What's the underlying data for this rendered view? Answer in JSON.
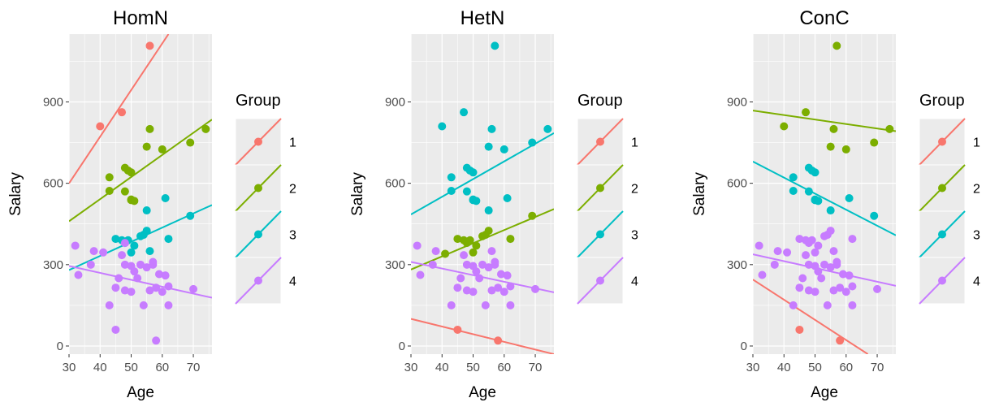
{
  "chart_data": [
    {
      "type": "scatter",
      "title": "HomN",
      "xlabel": "Age",
      "ylabel": "Salary",
      "xlim": [
        30,
        76
      ],
      "ylim": [
        -30,
        1150
      ],
      "x_ticks": [
        30,
        40,
        50,
        60,
        70
      ],
      "y_ticks": [
        0,
        300,
        600,
        900
      ],
      "legend": {
        "title": "Group",
        "entries": [
          "1",
          "2",
          "3",
          "4"
        ],
        "placement": "right"
      },
      "grid": true,
      "series": [
        {
          "name": "1",
          "color": "#F8766D",
          "points": [
            [
              40,
              810
            ],
            [
              47,
              862
            ],
            [
              56,
              1107
            ]
          ],
          "line": [
            [
              30,
              600
            ],
            [
              62,
              1150
            ]
          ]
        },
        {
          "name": "2",
          "color": "#7CAE00",
          "points": [
            [
              43,
              622
            ],
            [
              43,
              572
            ],
            [
              48,
              657
            ],
            [
              48,
              570
            ],
            [
              49,
              647
            ],
            [
              50,
              540
            ],
            [
              50,
              640
            ],
            [
              50,
              538
            ],
            [
              51,
              535
            ],
            [
              55,
              735
            ],
            [
              56,
              800
            ],
            [
              60,
              725
            ],
            [
              69,
              750
            ],
            [
              74,
              800
            ]
          ],
          "line": [
            [
              30,
              460
            ],
            [
              76,
              835
            ]
          ]
        },
        {
          "name": "3",
          "color": "#00BFC4",
          "points": [
            [
              45,
              395
            ],
            [
              47,
              390
            ],
            [
              48,
              380
            ],
            [
              49,
              390
            ],
            [
              50,
              345
            ],
            [
              51,
              370
            ],
            [
              53,
              405
            ],
            [
              54,
              410
            ],
            [
              55,
              425
            ],
            [
              55,
              500
            ],
            [
              56,
              350
            ],
            [
              61,
              545
            ],
            [
              62,
              395
            ],
            [
              69,
              480
            ]
          ],
          "line": [
            [
              30,
              280
            ],
            [
              76,
              520
            ]
          ]
        },
        {
          "name": "4",
          "color": "#C77CFF",
          "points": [
            [
              32,
              370
            ],
            [
              33,
              262
            ],
            [
              37,
              300
            ],
            [
              38,
              350
            ],
            [
              41,
              345
            ],
            [
              43,
              150
            ],
            [
              45,
              215
            ],
            [
              45,
              60
            ],
            [
              46,
              250
            ],
            [
              47,
              335
            ],
            [
              48,
              300
            ],
            [
              48,
              205
            ],
            [
              48,
              380
            ],
            [
              50,
              295
            ],
            [
              50,
              200
            ],
            [
              51,
              275
            ],
            [
              53,
              300
            ],
            [
              54,
              150
            ],
            [
              55,
              290
            ],
            [
              56,
              205
            ],
            [
              57,
              300
            ],
            [
              57,
              310
            ],
            [
              58,
              20
            ],
            [
              58,
              215
            ],
            [
              59,
              265
            ],
            [
              60,
              200
            ],
            [
              61,
              260
            ],
            [
              62,
              220
            ],
            [
              62,
              150
            ],
            [
              70,
              210
            ],
            [
              52,
              250
            ]
          ],
          "line": [
            [
              30,
              295
            ],
            [
              76,
              178
            ]
          ]
        }
      ]
    },
    {
      "type": "scatter",
      "title": "HetN",
      "xlabel": "Age",
      "ylabel": "Salary",
      "xlim": [
        30,
        76
      ],
      "ylim": [
        -30,
        1150
      ],
      "x_ticks": [
        30,
        40,
        50,
        60,
        70
      ],
      "y_ticks": [
        0,
        300,
        600,
        900
      ],
      "legend": {
        "title": "Group",
        "entries": [
          "1",
          "2",
          "3",
          "4"
        ],
        "placement": "right"
      },
      "grid": true,
      "series": [
        {
          "name": "1",
          "color": "#F8766D",
          "points": [
            [
              45,
              60
            ],
            [
              58,
              20
            ]
          ],
          "line": [
            [
              30,
              100
            ],
            [
              76,
              -30
            ]
          ]
        },
        {
          "name": "2",
          "color": "#7CAE00",
          "points": [
            [
              41,
              340
            ],
            [
              45,
              395
            ],
            [
              47,
              390
            ],
            [
              48,
              380
            ],
            [
              49,
              390
            ],
            [
              50,
              345
            ],
            [
              51,
              370
            ],
            [
              53,
              405
            ],
            [
              54,
              410
            ],
            [
              55,
              425
            ],
            [
              62,
              395
            ],
            [
              69,
              480
            ]
          ],
          "line": [
            [
              30,
              282
            ],
            [
              76,
              505
            ]
          ]
        },
        {
          "name": "3",
          "color": "#00BFC4",
          "points": [
            [
              40,
              810
            ],
            [
              43,
              622
            ],
            [
              43,
              572
            ],
            [
              47,
              862
            ],
            [
              48,
              657
            ],
            [
              48,
              570
            ],
            [
              49,
              647
            ],
            [
              50,
              540
            ],
            [
              50,
              640
            ],
            [
              50,
              538
            ],
            [
              51,
              535
            ],
            [
              55,
              735
            ],
            [
              55,
              500
            ],
            [
              56,
              800
            ],
            [
              57,
              1107
            ],
            [
              60,
              725
            ],
            [
              61,
              545
            ],
            [
              69,
              750
            ],
            [
              74,
              800
            ]
          ],
          "line": [
            [
              30,
              485
            ],
            [
              76,
              785
            ]
          ]
        },
        {
          "name": "4",
          "color": "#C77CFF",
          "points": [
            [
              32,
              370
            ],
            [
              33,
              262
            ],
            [
              37,
              300
            ],
            [
              38,
              350
            ],
            [
              43,
              150
            ],
            [
              45,
              215
            ],
            [
              46,
              250
            ],
            [
              47,
              335
            ],
            [
              48,
              300
            ],
            [
              48,
              205
            ],
            [
              50,
              295
            ],
            [
              50,
              200
            ],
            [
              51,
              275
            ],
            [
              53,
              300
            ],
            [
              54,
              150
            ],
            [
              55,
              290
            ],
            [
              56,
              205
            ],
            [
              56,
              350
            ],
            [
              57,
              300
            ],
            [
              57,
              310
            ],
            [
              58,
              215
            ],
            [
              59,
              265
            ],
            [
              60,
              200
            ],
            [
              61,
              260
            ],
            [
              62,
              220
            ],
            [
              62,
              150
            ],
            [
              70,
              210
            ],
            [
              52,
              250
            ]
          ],
          "line": [
            [
              30,
              310
            ],
            [
              76,
              198
            ]
          ]
        }
      ]
    },
    {
      "type": "scatter",
      "title": "ConC",
      "xlabel": "Age",
      "ylabel": "Salary",
      "xlim": [
        30,
        76
      ],
      "ylim": [
        -30,
        1150
      ],
      "x_ticks": [
        30,
        40,
        50,
        60,
        70
      ],
      "y_ticks": [
        0,
        300,
        600,
        900
      ],
      "legend": {
        "title": "Group",
        "entries": [
          "1",
          "2",
          "3",
          "4"
        ],
        "placement": "right"
      },
      "grid": true,
      "series": [
        {
          "name": "1",
          "color": "#F8766D",
          "points": [
            [
              45,
              60
            ],
            [
              58,
              20
            ]
          ],
          "line": [
            [
              30,
              245
            ],
            [
              67,
              -30
            ]
          ]
        },
        {
          "name": "2",
          "color": "#7CAE00",
          "points": [
            [
              40,
              810
            ],
            [
              47,
              862
            ],
            [
              55,
              735
            ],
            [
              56,
              800
            ],
            [
              57,
              1107
            ],
            [
              60,
              725
            ],
            [
              69,
              750
            ],
            [
              74,
              800
            ]
          ],
          "line": [
            [
              30,
              868
            ],
            [
              76,
              792
            ]
          ]
        },
        {
          "name": "3",
          "color": "#00BFC4",
          "points": [
            [
              43,
              622
            ],
            [
              43,
              572
            ],
            [
              48,
              657
            ],
            [
              48,
              570
            ],
            [
              49,
              647
            ],
            [
              50,
              540
            ],
            [
              50,
              640
            ],
            [
              50,
              538
            ],
            [
              51,
              535
            ],
            [
              55,
              500
            ],
            [
              61,
              545
            ],
            [
              69,
              480
            ]
          ],
          "line": [
            [
              30,
              680
            ],
            [
              76,
              408
            ]
          ]
        },
        {
          "name": "4",
          "color": "#C77CFF",
          "points": [
            [
              32,
              370
            ],
            [
              33,
              262
            ],
            [
              37,
              300
            ],
            [
              38,
              350
            ],
            [
              41,
              345
            ],
            [
              43,
              150
            ],
            [
              45,
              215
            ],
            [
              45,
              395
            ],
            [
              46,
              250
            ],
            [
              47,
              335
            ],
            [
              47,
              390
            ],
            [
              48,
              300
            ],
            [
              48,
              205
            ],
            [
              48,
              380
            ],
            [
              49,
              390
            ],
            [
              50,
              295
            ],
            [
              50,
              200
            ],
            [
              50,
              345
            ],
            [
              51,
              275
            ],
            [
              51,
              370
            ],
            [
              53,
              300
            ],
            [
              53,
              405
            ],
            [
              54,
              150
            ],
            [
              54,
              410
            ],
            [
              55,
              290
            ],
            [
              55,
              425
            ],
            [
              56,
              205
            ],
            [
              56,
              350
            ],
            [
              57,
              300
            ],
            [
              57,
              310
            ],
            [
              58,
              215
            ],
            [
              59,
              265
            ],
            [
              60,
              200
            ],
            [
              61,
              260
            ],
            [
              62,
              220
            ],
            [
              62,
              150
            ],
            [
              62,
              395
            ],
            [
              70,
              210
            ],
            [
              52,
              250
            ]
          ],
          "line": [
            [
              30,
              338
            ],
            [
              76,
              222
            ]
          ]
        }
      ]
    }
  ]
}
